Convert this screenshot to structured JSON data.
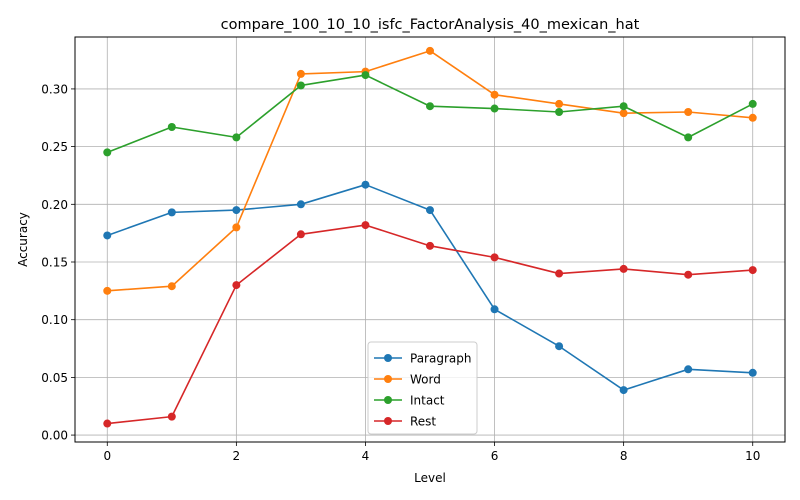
{
  "chart_data": {
    "type": "line",
    "title": "compare_100_10_10_isfc_FactorAnalysis_40_mexican_hat",
    "xlabel": "Level",
    "ylabel": "Accuracy",
    "xlim": [
      -0.5,
      10.5
    ],
    "ylim": [
      -0.006,
      0.345
    ],
    "x": [
      0,
      1,
      2,
      3,
      4,
      5,
      6,
      7,
      8,
      9,
      10
    ],
    "xticks": [
      0,
      2,
      4,
      6,
      8,
      10
    ],
    "xtick_labels": [
      "0",
      "2",
      "4",
      "6",
      "8",
      "10"
    ],
    "yticks": [
      0.0,
      0.05,
      0.1,
      0.15,
      0.2,
      0.25,
      0.3
    ],
    "ytick_labels": [
      "0.00",
      "0.05",
      "0.10",
      "0.15",
      "0.20",
      "0.25",
      "0.30"
    ],
    "grid": true,
    "legend_position": "lower center",
    "series": [
      {
        "name": "Paragraph",
        "color": "#1f77b4",
        "values": [
          0.173,
          0.193,
          0.195,
          0.2,
          0.217,
          0.195,
          0.109,
          0.077,
          0.039,
          0.057,
          0.054
        ]
      },
      {
        "name": "Word",
        "color": "#ff7f0e",
        "values": [
          0.125,
          0.129,
          0.18,
          0.313,
          0.315,
          0.333,
          0.295,
          0.287,
          0.279,
          0.28,
          0.275
        ]
      },
      {
        "name": "Intact",
        "color": "#2ca02c",
        "values": [
          0.245,
          0.267,
          0.258,
          0.303,
          0.312,
          0.285,
          0.283,
          0.28,
          0.285,
          0.258,
          0.287
        ]
      },
      {
        "name": "Rest",
        "color": "#d62728",
        "values": [
          0.01,
          0.016,
          0.13,
          0.174,
          0.182,
          0.164,
          0.154,
          0.14,
          0.144,
          0.139,
          0.143
        ]
      }
    ]
  }
}
